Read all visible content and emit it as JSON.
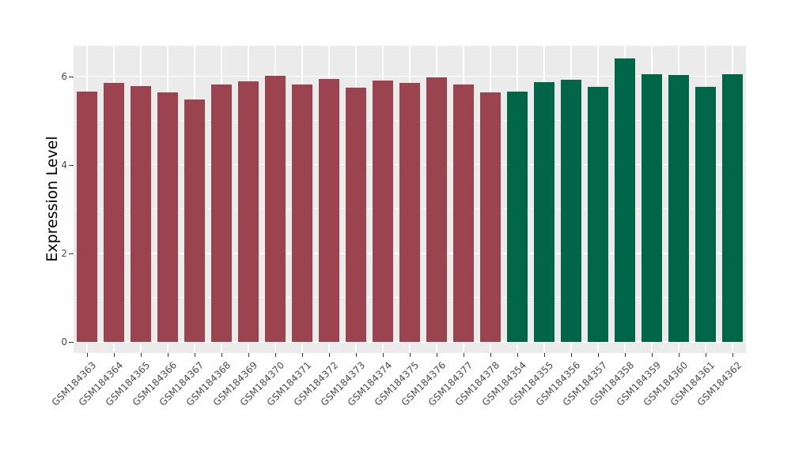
{
  "chart_data": {
    "type": "bar",
    "title": "",
    "xlabel": "",
    "ylabel": "Expression Level",
    "ylim": [
      0,
      6.7
    ],
    "yticks": [
      0,
      2,
      4,
      6
    ],
    "yminor_gridlines": [
      1,
      3,
      5
    ],
    "legend_position": "none",
    "grid": "white-on-gray-panel",
    "series": [
      {
        "name": "maroon-group",
        "color": "#9B4450",
        "categories": [
          "GSM184363",
          "GSM184364",
          "GSM184365",
          "GSM184366",
          "GSM184367",
          "GSM184368",
          "GSM184369",
          "GSM184370",
          "GSM184371",
          "GSM184372",
          "GSM184373",
          "GSM184374",
          "GSM184375",
          "GSM184376",
          "GSM184377",
          "GSM184378"
        ],
        "values": [
          5.66,
          5.84,
          5.77,
          5.63,
          5.48,
          5.81,
          5.88,
          6.01,
          5.81,
          5.93,
          5.75,
          5.9,
          5.84,
          5.98,
          5.81,
          5.63
        ]
      },
      {
        "name": "green-group",
        "color": "#006647",
        "categories": [
          "GSM184354",
          "GSM184355",
          "GSM184356",
          "GSM184357",
          "GSM184358",
          "GSM184359",
          "GSM184360",
          "GSM184361",
          "GSM184362"
        ],
        "values": [
          5.66,
          5.87,
          5.92,
          5.76,
          6.41,
          6.05,
          6.03,
          5.76,
          6.05
        ]
      }
    ]
  },
  "style": {
    "page_bg": "#FFFFFF",
    "panel_bg": "#EBEBEB",
    "grid_color": "#FFFFFF",
    "axis_text_color": "#4D4D4D",
    "axis_title_color": "#000000",
    "tick_mark_color": "#333333"
  }
}
